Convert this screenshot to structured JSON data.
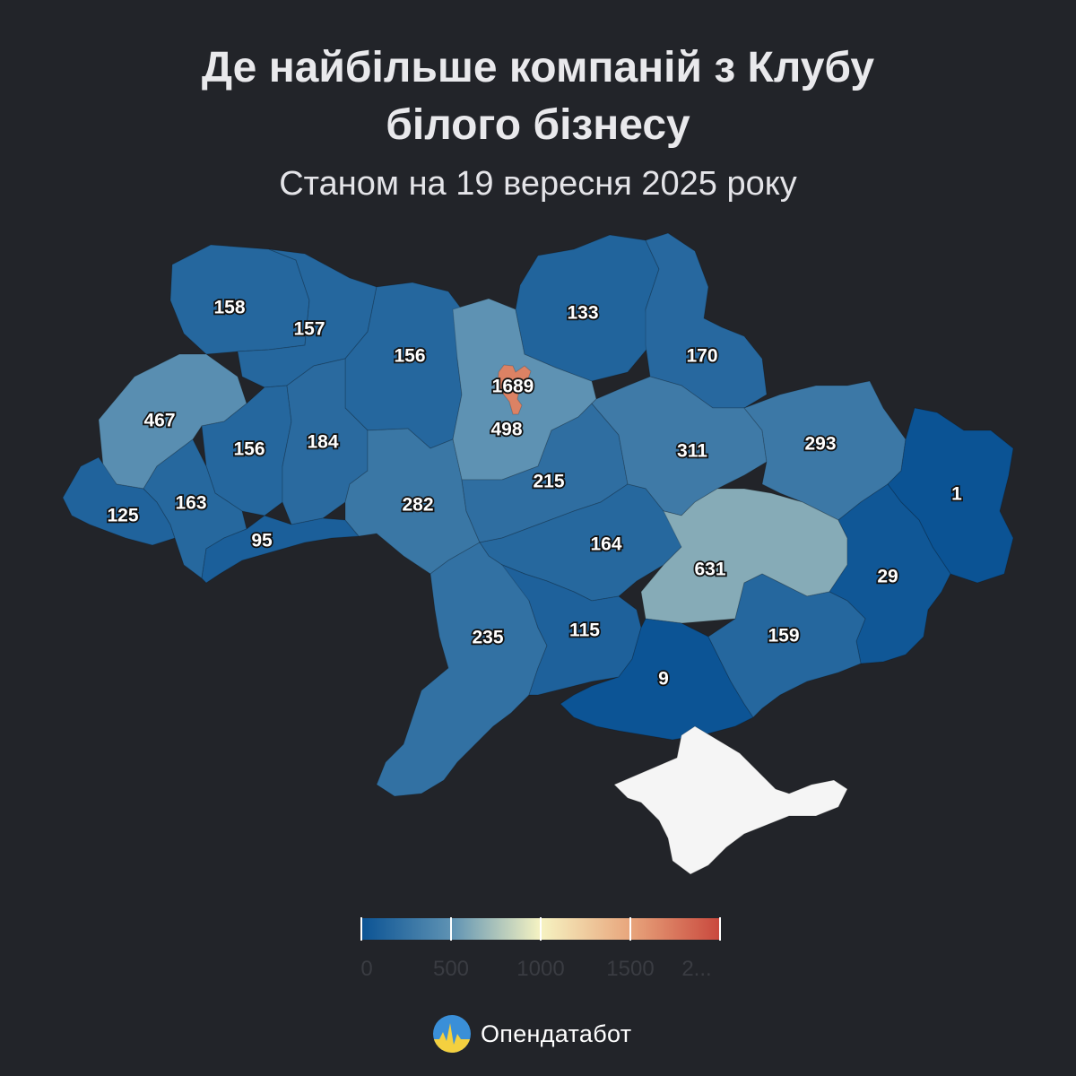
{
  "header": {
    "title_line1": "Де найбільше компаній з Клубу",
    "title_line2": "білого бізнесу",
    "subtitle": "Станом на 19 вересня 2025 року"
  },
  "map_data": {
    "type": "choropleth",
    "regions": [
      {
        "id": "volyn",
        "value": 158
      },
      {
        "id": "rivne",
        "value": 157
      },
      {
        "id": "zhytomyr",
        "value": 156
      },
      {
        "id": "kyiv-oblast",
        "value": 498
      },
      {
        "id": "kyiv-city",
        "value": 1689
      },
      {
        "id": "chernihiv",
        "value": 133
      },
      {
        "id": "sumy",
        "value": 170
      },
      {
        "id": "lviv",
        "value": 467
      },
      {
        "id": "ternopil",
        "value": 156
      },
      {
        "id": "khmelnytskyi",
        "value": 184
      },
      {
        "id": "vinnytsia",
        "value": 282
      },
      {
        "id": "cherkasy",
        "value": 215
      },
      {
        "id": "poltava",
        "value": 311
      },
      {
        "id": "kharkiv",
        "value": 293
      },
      {
        "id": "luhansk",
        "value": 1
      },
      {
        "id": "zakarpattia",
        "value": 125
      },
      {
        "id": "ivano-frankivsk",
        "value": 163
      },
      {
        "id": "chernivtsi",
        "value": 95
      },
      {
        "id": "kirovohrad",
        "value": 164
      },
      {
        "id": "dnipropetrovsk",
        "value": 631
      },
      {
        "id": "donetsk",
        "value": 29
      },
      {
        "id": "odesa",
        "value": 235
      },
      {
        "id": "mykolaiv",
        "value": 115
      },
      {
        "id": "kherson",
        "value": 9
      },
      {
        "id": "zaporizhzhia",
        "value": 159
      },
      {
        "id": "crimea",
        "value": null
      }
    ],
    "no_data_color": "#f5f5f5"
  },
  "legend": {
    "ticks": [
      "0",
      "500",
      "1000",
      "1500",
      "2..."
    ],
    "domain": [
      0,
      2000
    ],
    "colors": [
      "#0b5394",
      "#5e92b3",
      "#f6f3c2",
      "#e8a57c",
      "#c9483d"
    ]
  },
  "brand": {
    "name": "Опендатабот"
  }
}
